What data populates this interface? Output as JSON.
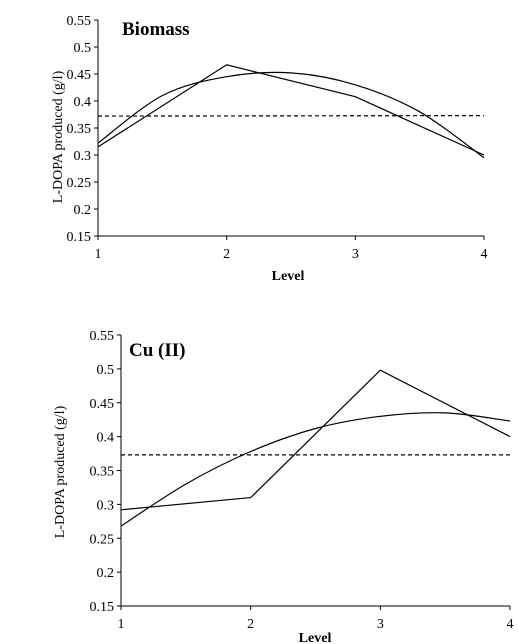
{
  "chart_data": [
    {
      "type": "line",
      "title": "Biomass",
      "xlabel": "Level",
      "ylabel": "L-DOPA produced (g/l)",
      "xlim": [
        1,
        4
      ],
      "ylim": [
        0.15,
        0.55
      ],
      "x_ticks": [
        "1",
        "2",
        "3",
        "4"
      ],
      "y_ticks": [
        "0.15",
        "0.2",
        "0.25",
        "0.3",
        "0.35",
        "0.4",
        "0.45",
        "0.5",
        "0.55"
      ],
      "grid": false,
      "series": [
        {
          "style": "solid",
          "x": [
            1,
            2,
            3,
            4
          ],
          "values": [
            0.315,
            0.467,
            0.408,
            0.3
          ]
        },
        {
          "style": "solid-smooth",
          "x": [
            1,
            1.5,
            2,
            2.5,
            3,
            3.5,
            4
          ],
          "values": [
            0.322,
            0.41,
            0.445,
            0.452,
            0.43,
            0.38,
            0.295
          ]
        },
        {
          "style": "dashed",
          "x": [
            1,
            4
          ],
          "values": [
            0.372,
            0.373
          ]
        }
      ]
    },
    {
      "type": "line",
      "title": "Cu (II)",
      "xlabel": "Level",
      "ylabel": "L-DOPA produced (g/l)",
      "xlim": [
        1,
        4
      ],
      "ylim": [
        0.15,
        0.55
      ],
      "x_ticks": [
        "1",
        "2",
        "3",
        "4"
      ],
      "y_ticks": [
        "0.15",
        "0.2",
        "0.25",
        "0.3",
        "0.35",
        "0.4",
        "0.45",
        "0.5",
        "0.55"
      ],
      "grid": false,
      "series": [
        {
          "style": "solid",
          "x": [
            1,
            2,
            3,
            4
          ],
          "values": [
            0.292,
            0.31,
            0.498,
            0.4
          ]
        },
        {
          "style": "solid-smooth",
          "x": [
            1,
            1.5,
            2,
            2.5,
            3,
            3.5,
            4
          ],
          "values": [
            0.268,
            0.33,
            0.378,
            0.412,
            0.43,
            0.435,
            0.423
          ]
        },
        {
          "style": "dashed",
          "x": [
            1,
            4
          ],
          "values": [
            0.373,
            0.373
          ]
        }
      ]
    }
  ]
}
